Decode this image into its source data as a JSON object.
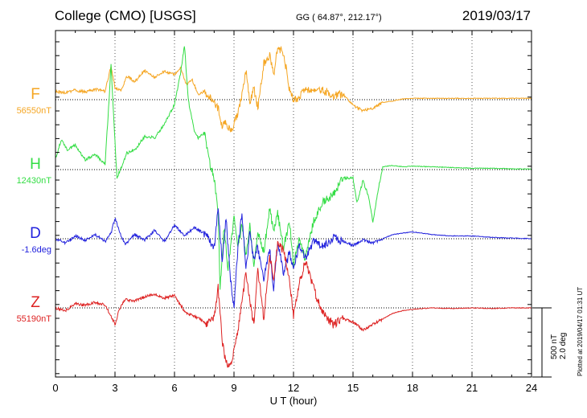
{
  "header": {
    "station": "College (CMO)  [USGS]",
    "coords": "GG ( 64.87°, 212.17°)",
    "date": "2019/03/17"
  },
  "scale": {
    "nt": "500 nT",
    "deg": "2.0 deg"
  },
  "plotted": "Plotted at 2019/04/17 01:31  UT",
  "chart_data": {
    "type": "line",
    "xlabel": "U T (hour)",
    "xlim": [
      0,
      24
    ],
    "xticks": [
      "0",
      "3",
      "6",
      "9",
      "12",
      "15",
      "18",
      "21",
      "24"
    ],
    "grid": true,
    "series": [
      {
        "name": "F",
        "baseline_label": "56550nT",
        "color": "#f5a623",
        "x": [
          0,
          0.5,
          1,
          1.5,
          2,
          2.5,
          2.8,
          3,
          3.3,
          3.6,
          4,
          4.5,
          5,
          5.5,
          6,
          6.3,
          6.6,
          6.9,
          7.2,
          7.5,
          7.8,
          8,
          8.2,
          8.4,
          8.6,
          8.8,
          9,
          9.2,
          9.4,
          9.6,
          9.8,
          10,
          10.2,
          10.5,
          10.8,
          11,
          11.2,
          11.5,
          11.8,
          12,
          12.3,
          12.6,
          13,
          13.5,
          14,
          14.5,
          15,
          15.5,
          16,
          16.5,
          17,
          17.5,
          18,
          19,
          20,
          21,
          22,
          23,
          24
        ],
        "y": [
          60,
          50,
          70,
          55,
          75,
          60,
          240,
          90,
          60,
          170,
          130,
          210,
          160,
          205,
          180,
          230,
          110,
          140,
          40,
          60,
          20,
          -20,
          -60,
          -190,
          -160,
          -220,
          -180,
          -90,
          30,
          210,
          -20,
          90,
          -60,
          260,
          320,
          180,
          370,
          340,
          70,
          -10,
          20,
          70,
          50,
          70,
          30,
          40,
          -40,
          -80,
          -60,
          -20,
          -10,
          5,
          10,
          10,
          10,
          10,
          10,
          10,
          10
        ]
      },
      {
        "name": "H",
        "baseline_label": "12430nT",
        "color": "#33dd44",
        "x": [
          0,
          0.3,
          0.6,
          1,
          1.5,
          2,
          2.5,
          2.7,
          2.8,
          3,
          3.1,
          3.3,
          3.6,
          4,
          4.5,
          5,
          5.5,
          6,
          6.3,
          6.5,
          6.7,
          7,
          7.2,
          7.5,
          7.8,
          8,
          8.2,
          8.3,
          8.5,
          8.7,
          9,
          9.2,
          9.4,
          9.6,
          9.8,
          10,
          10.2,
          10.5,
          10.8,
          11,
          11.2,
          11.5,
          11.8,
          12,
          12.3,
          12.6,
          13,
          13.5,
          14,
          14.5,
          15,
          15.2,
          15.5,
          15.8,
          16,
          16.3,
          16.5,
          17,
          17.5,
          18,
          19,
          20,
          21,
          22,
          23,
          24
        ],
        "y": [
          80,
          220,
          140,
          180,
          70,
          110,
          40,
          500,
          760,
          200,
          -60,
          10,
          120,
          140,
          240,
          230,
          330,
          470,
          690,
          900,
          500,
          280,
          230,
          270,
          40,
          -60,
          -320,
          -860,
          -420,
          -720,
          -350,
          -560,
          -400,
          -620,
          -400,
          -700,
          -440,
          -600,
          -280,
          -460,
          -320,
          -560,
          -380,
          -680,
          -500,
          -650,
          -380,
          -230,
          -180,
          -60,
          -60,
          -240,
          -80,
          -200,
          -380,
          -120,
          20,
          30,
          20,
          25,
          20,
          15,
          10,
          10,
          5,
          5
        ]
      },
      {
        "name": "D",
        "baseline_label": "-1.6deg",
        "color": "#2222dd",
        "x": [
          0,
          0.5,
          1,
          1.5,
          2,
          2.5,
          2.8,
          3,
          3.2,
          3.5,
          4,
          4.5,
          5,
          5.5,
          6,
          6.5,
          7,
          7.5,
          8,
          8.2,
          8.4,
          8.6,
          8.8,
          9,
          9.2,
          9.4,
          9.6,
          9.8,
          10,
          10.2,
          10.5,
          10.8,
          11,
          11.2,
          11.5,
          11.8,
          12,
          12.3,
          12.6,
          13,
          13.5,
          14,
          14.5,
          15,
          15.5,
          16,
          16.5,
          17,
          17.5,
          18,
          19,
          20,
          21,
          22,
          23,
          24
        ],
        "y": [
          0,
          -30,
          20,
          -10,
          30,
          -20,
          40,
          150,
          60,
          -40,
          30,
          -10,
          60,
          -20,
          100,
          20,
          80,
          40,
          -60,
          220,
          -160,
          140,
          -260,
          -500,
          -60,
          180,
          -220,
          40,
          -160,
          -60,
          -300,
          -80,
          -360,
          -20,
          -240,
          -100,
          -220,
          -40,
          -140,
          -20,
          -60,
          10,
          -20,
          -50,
          -10,
          -30,
          0,
          30,
          40,
          50,
          30,
          20,
          20,
          10,
          5,
          0
        ]
      },
      {
        "name": "Z",
        "baseline_label": "55190nT",
        "color": "#dd2222",
        "x": [
          0,
          0.5,
          1,
          1.5,
          2,
          2.5,
          2.8,
          3,
          3.2,
          3.5,
          4,
          4.5,
          5,
          5.5,
          6,
          6.3,
          6.6,
          7,
          7.3,
          7.6,
          8,
          8.2,
          8.4,
          8.6,
          8.8,
          9,
          9.2,
          9.4,
          9.6,
          9.8,
          10,
          10.2,
          10.5,
          10.8,
          11,
          11.2,
          11.5,
          11.8,
          12,
          12.3,
          12.6,
          12.9,
          13.2,
          13.5,
          14,
          14.5,
          15,
          15.5,
          16,
          16.5,
          17,
          17.5,
          18,
          19,
          20,
          21,
          22,
          23,
          24
        ],
        "y": [
          0,
          -20,
          30,
          20,
          40,
          20,
          -60,
          -120,
          -20,
          60,
          50,
          80,
          100,
          70,
          90,
          20,
          -40,
          -60,
          -80,
          -120,
          -70,
          150,
          -240,
          -400,
          -420,
          -300,
          -160,
          30,
          260,
          50,
          -120,
          280,
          -80,
          380,
          200,
          460,
          420,
          200,
          -60,
          180,
          340,
          200,
          60,
          -40,
          -120,
          -80,
          -100,
          -160,
          -120,
          -80,
          -40,
          -20,
          -10,
          0,
          -5,
          0,
          -5,
          0,
          0
        ]
      }
    ]
  }
}
